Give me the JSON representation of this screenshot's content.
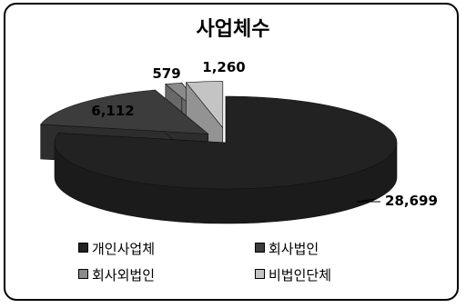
{
  "chart_data": {
    "type": "pie",
    "title": "사업체수",
    "style": "3d-exploded",
    "categories": [
      "개인사업체",
      "회사법인",
      "회사외법인",
      "비법인단체"
    ],
    "values": [
      28699,
      6112,
      579,
      1260
    ],
    "data_labels": [
      "28,699",
      "6,112",
      "579",
      "1,260"
    ],
    "colors": [
      "#222222",
      "#3c3c3c",
      "#8a8a8a",
      "#c4c4c4"
    ],
    "legend_position": "bottom"
  }
}
